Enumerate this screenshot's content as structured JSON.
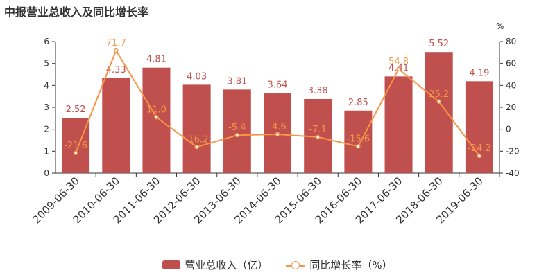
{
  "title": "中报营业总收入及同比增长率",
  "colors": {
    "bar": "#c0504d",
    "line": "#f79646",
    "axis": "#333333",
    "grid": "#e6e6e6"
  },
  "chart_data": {
    "type": "bar+line",
    "categories": [
      "2009-06-30",
      "2010-06-30",
      "2011-06-30",
      "2012-06-30",
      "2013-06-30",
      "2014-06-30",
      "2015-06-30",
      "2016-06-30",
      "2017-06-30",
      "2018-06-30",
      "2019-06-30"
    ],
    "series": [
      {
        "name": "营业总收入（亿）",
        "type": "bar",
        "axis": "left",
        "values": [
          2.52,
          4.33,
          4.81,
          4.03,
          3.81,
          3.64,
          3.38,
          2.85,
          4.41,
          5.52,
          4.19
        ]
      },
      {
        "name": "同比增长率（%）",
        "type": "line",
        "axis": "right",
        "values": [
          -21.6,
          71.7,
          11.0,
          -16.2,
          -5.4,
          -4.6,
          -7.1,
          -15.6,
          54.8,
          25.2,
          -24.2
        ],
        "labels": [
          "-21.6",
          "71.7",
          "11.0",
          "-16.2",
          "-5.4",
          "-4.6",
          "-7.1",
          "-15.6",
          "54.8",
          "25.2",
          "-24.2"
        ]
      }
    ],
    "left_axis": {
      "ylim": [
        0,
        6
      ],
      "ticks": [
        "0",
        "1",
        "2",
        "3",
        "4",
        "5",
        "6"
      ]
    },
    "right_axis": {
      "ylim": [
        -40,
        80
      ],
      "ticks": [
        "-40",
        "-20",
        "0",
        "20",
        "40",
        "60",
        "80"
      ],
      "unit": "%"
    },
    "legend_position": "bottom",
    "grid": false
  }
}
